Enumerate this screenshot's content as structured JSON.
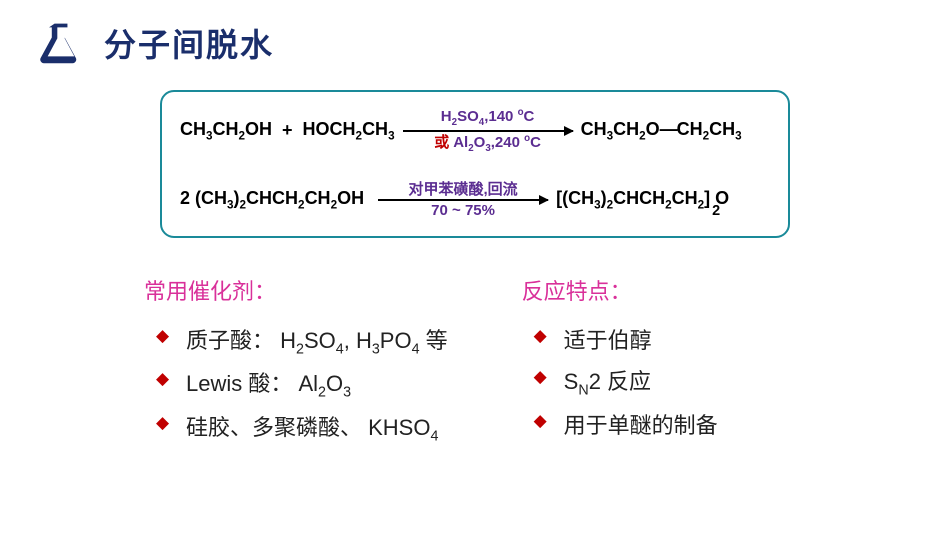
{
  "colors": {
    "title": "#1a2e6b",
    "icon_fill": "#1a2e6b",
    "box_border": "#1a8a99",
    "purple": "#5b2d91",
    "black": "#000000",
    "or_red": "#c00000",
    "bullet_red": "#c00000",
    "magenta": "#d9309a",
    "text": "#222222"
  },
  "title": "分子间脱水",
  "reaction1": {
    "lhs_a": "CH<sub>3</sub>CH<sub>2</sub>OH",
    "plus": "+",
    "lhs_b": "HOCH<sub>2</sub>CH<sub>3</sub>",
    "cond_top": "H<sub>2</sub>SO<sub>4</sub>,140 <sup>o</sup>C",
    "or_label": "或",
    "cond_bottom": "Al<sub>2</sub>O<sub>3</sub>,240 <sup>o</sup>C",
    "rhs": "CH<sub>3</sub>CH<sub>2</sub>O<span class=\"bond\">—</span>CH<sub>2</sub>CH<sub>3</sub>"
  },
  "reaction2": {
    "lhs": "2 (CH<sub>3</sub>)<sub>2</sub>CHCH<sub>2</sub>CH<sub>2</sub>OH",
    "cond_top": "对甲苯磺酸,回流",
    "cond_bottom": "70 ~ 75%",
    "rhs": "[(CH<sub>3</sub>)<sub>2</sub>CHCH<sub>2</sub>CH<sub>2</sub><span class=\"rbrack\">]<span class=\"sub2\">2</span></span>&nbsp;O"
  },
  "left_col": {
    "heading": "常用催化剂：",
    "items": [
      "质子酸： H<sub>2</sub>SO<sub>4</sub>, H<sub>3</sub>PO<sub>4</sub> 等",
      "Lewis  酸：  Al<sub>2</sub>O<sub>3</sub>",
      "硅胶、多聚磷酸、 KHSO<sub>4</sub>"
    ]
  },
  "right_col": {
    "heading": "反应特点：",
    "items": [
      "适于伯醇",
      "S<sub>N</sub>2  反应",
      "用于单醚的制备"
    ]
  }
}
